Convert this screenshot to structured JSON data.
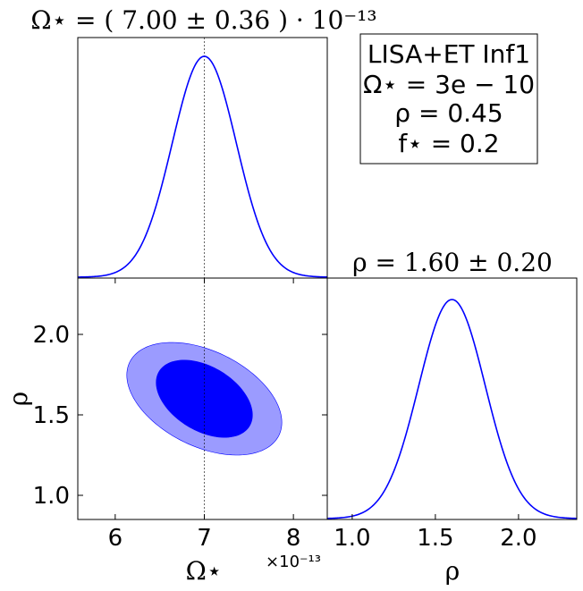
{
  "chart_data": [
    {
      "type": "line",
      "panel": "omega-marginal",
      "title": "Ω⋆ = ( 7.00 ± 0.36 ) · 10⁻¹³",
      "xlabel": "",
      "ylabel": "",
      "xlim": [
        5.58,
        8.38
      ],
      "x_offset_label": "×10⁻¹³",
      "distribution": {
        "mean": 7.0,
        "sigma": 0.36
      },
      "truth_value": 7.0,
      "color": "#0000ff"
    },
    {
      "type": "area",
      "panel": "omega-rho-joint",
      "xlabel": "Ω⋆",
      "ylabel": "ρ",
      "xlim": [
        5.58,
        8.38
      ],
      "ylim": [
        0.85,
        2.35
      ],
      "x_ticks": [
        "6",
        "7",
        "8"
      ],
      "y_ticks": [
        "1.0",
        "1.5",
        "2.0"
      ],
      "x_offset_label": "×10⁻¹³",
      "contours": [
        {
          "level": "95%",
          "center": [
            7.0,
            1.6
          ],
          "x_extent": [
            6.13,
            7.87
          ],
          "y_extent": [
            1.25,
            1.95
          ],
          "color": "#9b9bff"
        },
        {
          "level": "68%",
          "center": [
            7.0,
            1.6
          ],
          "x_extent": [
            6.45,
            7.53
          ],
          "y_extent": [
            1.36,
            1.84
          ],
          "color": "#0000ff"
        }
      ],
      "truth_value": 7.0
    },
    {
      "type": "line",
      "panel": "rho-marginal",
      "title": "ρ = 1.60 ± 0.20",
      "xlabel": "ρ",
      "ylabel": "",
      "xlim": [
        0.85,
        2.35
      ],
      "x_ticks": [
        "1.0",
        "1.5",
        "2.0"
      ],
      "distribution": {
        "mean": 1.6,
        "sigma": 0.2
      },
      "color": "#0000ff"
    }
  ],
  "info_box": {
    "line1": "LISA+ET Inf1",
    "line2": "Ω⋆ = 3e − 10",
    "line3": "ρ = 0.45",
    "line4": "f⋆ = 0.2"
  }
}
